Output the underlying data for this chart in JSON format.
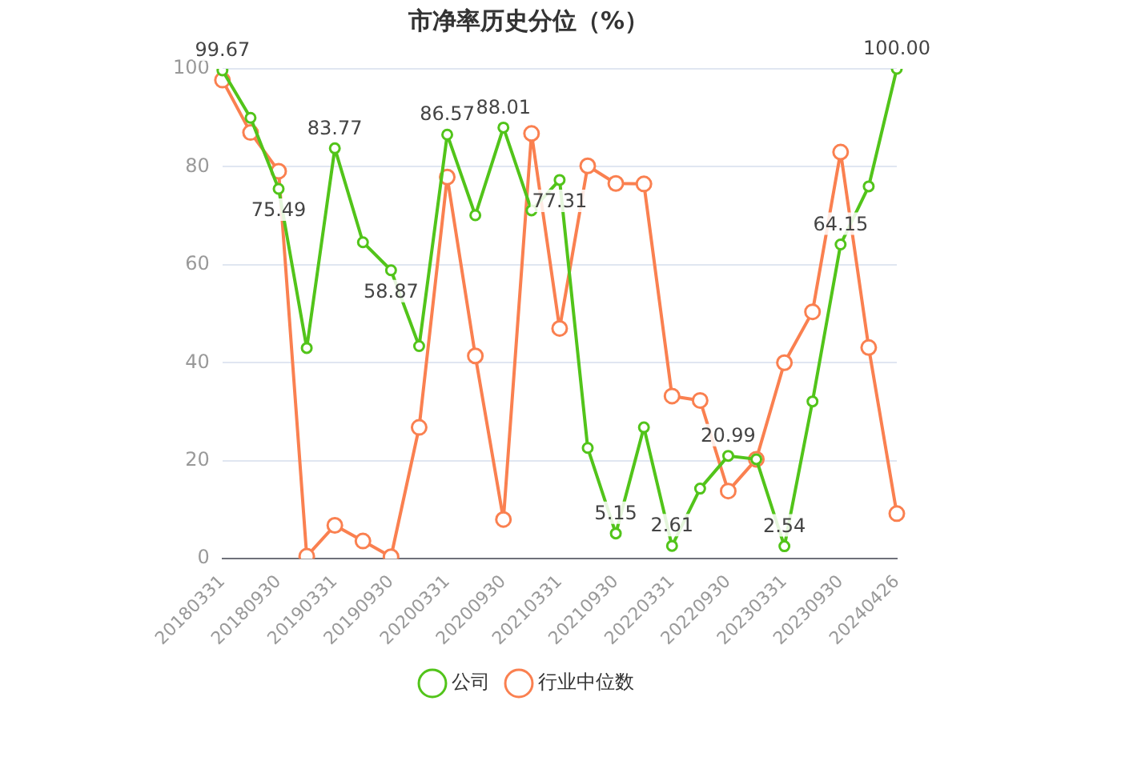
{
  "chart_data": {
    "type": "line",
    "title": "市净率历史分位（%）",
    "categories": [
      "20180331",
      null,
      "20180930",
      null,
      "20190331",
      null,
      "20190930",
      null,
      "20200331",
      null,
      "20200930",
      null,
      "20210331",
      null,
      "20210930",
      null,
      "20220331",
      null,
      "20220930",
      null,
      "20230331",
      null,
      "20230930",
      null,
      "20240426"
    ],
    "series": [
      {
        "name": "公司",
        "color": "#52c41a",
        "values": [
          99.67,
          90,
          75.49,
          43,
          83.77,
          64.6,
          58.87,
          43.4,
          86.57,
          70.1,
          88.01,
          71.1,
          77.31,
          22.6,
          5.15,
          26.8,
          2.61,
          14.3,
          20.99,
          20.3,
          2.54,
          32.1,
          64.15,
          76,
          100.0
        ],
        "value_labels": [
          "99.67",
          null,
          "75.49",
          null,
          "83.77",
          null,
          "58.87",
          null,
          "86.57",
          null,
          "88.01",
          null,
          "77.31",
          null,
          "5.15",
          null,
          "2.61",
          null,
          "20.99",
          null,
          "2.54",
          null,
          "64.15",
          null,
          "100.00"
        ]
      },
      {
        "name": "行业中位数",
        "color": "#fa8050",
        "values": [
          97.7,
          87,
          79.1,
          0.5,
          6.8,
          3.6,
          0.4,
          26.8,
          77.9,
          41.4,
          8,
          86.8,
          47,
          80.2,
          76.6,
          76.5,
          33.2,
          32.3,
          13.8,
          20.3,
          40,
          50.4,
          83,
          43.1,
          9.2
        ]
      }
    ],
    "ylim": [
      0,
      100
    ],
    "yticks": [
      0,
      20,
      40,
      60,
      80,
      100
    ],
    "grid": "y",
    "legend": "bottom",
    "marker": "circle",
    "line_style": "solid"
  }
}
